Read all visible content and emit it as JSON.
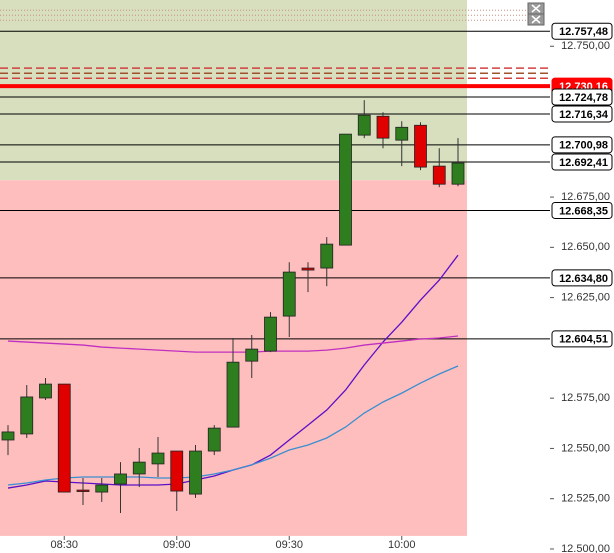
{
  "chart_data": {
    "type": "candlestick",
    "categories": [
      null,
      null,
      null,
      "08:30",
      null,
      null,
      null,
      null,
      null,
      "09:00",
      null,
      null,
      null,
      null,
      null,
      "09:30",
      null,
      null,
      null,
      null,
      null,
      "10:00",
      null,
      null,
      null
    ],
    "open": [
      12554.2,
      12557.2,
      12575.1,
      12582.0,
      12529.3,
      12528.3,
      12532.3,
      12537.3,
      12542.3,
      12548.7,
      12527.3,
      12548.7,
      12560.6,
      12593.4,
      12598.4,
      12615.8,
      12639.7,
      12639.7,
      12651.1,
      12705.8,
      12715.2,
      12703.3,
      12710.7,
      12690.4,
      12681.4
    ],
    "high": [
      12561.6,
      12581.5,
      12585.0,
      12582.0,
      12535.3,
      12535.3,
      12543.2,
      12550.2,
      12555.7,
      12548.7,
      12551.7,
      12561.6,
      12604.9,
      12606.4,
      12617.8,
      12642.6,
      12642.6,
      12655.1,
      12706.3,
      12723.2,
      12717.2,
      12712.7,
      12712.2,
      12699.3,
      12704.3
    ],
    "low": [
      12546.7,
      12555.2,
      12574.1,
      12528.3,
      12521.9,
      12523.4,
      12517.9,
      12530.8,
      12535.8,
      12518.9,
      12525.4,
      12546.7,
      12560.6,
      12585.0,
      12597.9,
      12605.4,
      12627.7,
      12630.7,
      12651.1,
      12704.3,
      12699.3,
      12690.4,
      12688.4,
      12679.9,
      12680.4
    ],
    "close": [
      12558.2,
      12575.6,
      12582.0,
      12528.3,
      12528.8,
      12531.8,
      12537.3,
      12543.2,
      12547.7,
      12528.8,
      12548.7,
      12560.1,
      12592.9,
      12599.4,
      12615.3,
      12637.7,
      12638.7,
      12651.6,
      12706.3,
      12715.7,
      12704.3,
      12709.7,
      12689.9,
      12681.4,
      12691.9
    ],
    "up_color": "#2e7d1e",
    "down_color": "#e00000",
    "ma": [
      {
        "color": "#5a10c8",
        "values": [
          12530.3,
          12531.8,
          12533.8,
          12533.3,
          12532.8,
          12532.3,
          12531.8,
          12531.8,
          12531.8,
          12532.3,
          12534.3,
          12536.3,
          12539.3,
          12541.8,
          12546.7,
          12554.2,
          12561.6,
          12569.1,
          12579.0,
          12591.5,
          12602.9,
          12612.8,
          12623.8,
          12633.7,
          12646.1
        ]
      },
      {
        "color": "#3a8fd0",
        "values": [
          12531.8,
          12532.8,
          12534.3,
          12535.3,
          12535.8,
          12535.8,
          12535.8,
          12535.8,
          12535.3,
          12535.3,
          12535.8,
          12537.3,
          12539.3,
          12541.8,
          12545.2,
          12549.2,
          12551.7,
          12555.2,
          12560.6,
          12567.6,
          12573.1,
          12577.5,
          12582.5,
          12587.0,
          12591.0
        ]
      },
      {
        "color": "#c030c0",
        "values": [
          12603.4,
          12602.9,
          12602.4,
          12601.9,
          12601.4,
          12600.4,
          12599.9,
          12599.4,
          12598.9,
          12598.4,
          12597.9,
          12597.9,
          12597.9,
          12597.9,
          12598.4,
          12598.4,
          12598.4,
          12598.9,
          12599.9,
          12601.4,
          12602.4,
          12603.4,
          12604.4,
          12604.9,
          12605.9
        ]
      }
    ],
    "zones": [
      {
        "from": 12683.4,
        "to": 12773,
        "color": "#d7dfbf"
      },
      {
        "from": 12506.5,
        "to": 12683.4,
        "color": "#ffbebe"
      }
    ],
    "extra_levels": [
      {
        "value": 12767.9,
        "color": "#c89080",
        "style": "dotted"
      },
      {
        "value": 12765.4,
        "color": "#c89080",
        "style": "dotted"
      },
      {
        "value": 12762.9,
        "color": "#c89080",
        "style": "dotted"
      },
      {
        "value": 12739.1,
        "color": "#d04040",
        "style": "dashed"
      },
      {
        "value": 12736.6,
        "color": "#a0522d",
        "style": "dashed"
      },
      {
        "value": 12734.1,
        "color": "#d04040",
        "style": "dashed"
      }
    ],
    "levels": [
      {
        "value": 12757.48,
        "label": "12.757,48",
        "color": "#000000",
        "line_width": 1
      },
      {
        "value": 12730.16,
        "label": "12.730,16",
        "color": "#ff0000",
        "line_width": 4
      },
      {
        "value": 12724.78,
        "label": "12.724,78",
        "color": "#000000",
        "line_width": 1
      },
      {
        "value": 12716.34,
        "label": "12.716,34",
        "color": "#000000",
        "line_width": 1
      },
      {
        "value": 12700.98,
        "label": "12.700,98",
        "color": "#000000",
        "line_width": 1
      },
      {
        "value": 12692.41,
        "label": "12.692,41",
        "color": "#000000",
        "line_width": 1
      },
      {
        "value": 12668.35,
        "label": "12.668,35",
        "color": "#000000",
        "line_width": 1
      },
      {
        "value": 12634.8,
        "label": "12.634,80",
        "color": "#000000",
        "line_width": 1
      },
      {
        "value": 12604.51,
        "label": "12.604,51",
        "color": "#000000",
        "line_width": 1
      }
    ],
    "ylim": [
      12498,
      12773
    ],
    "yticks": [
      {
        "value": 12750,
        "label": "12.750,00"
      },
      {
        "value": 12675,
        "label": "12.675,00"
      },
      {
        "value": 12650,
        "label": "12.650,00"
      },
      {
        "value": 12625,
        "label": "12.625,00"
      },
      {
        "value": 12575,
        "label": "12.575,00"
      },
      {
        "value": 12550,
        "label": "12.550,00"
      },
      {
        "value": 12525,
        "label": "12.525,00"
      },
      {
        "value": 12500,
        "label": "12.500,00"
      }
    ]
  }
}
